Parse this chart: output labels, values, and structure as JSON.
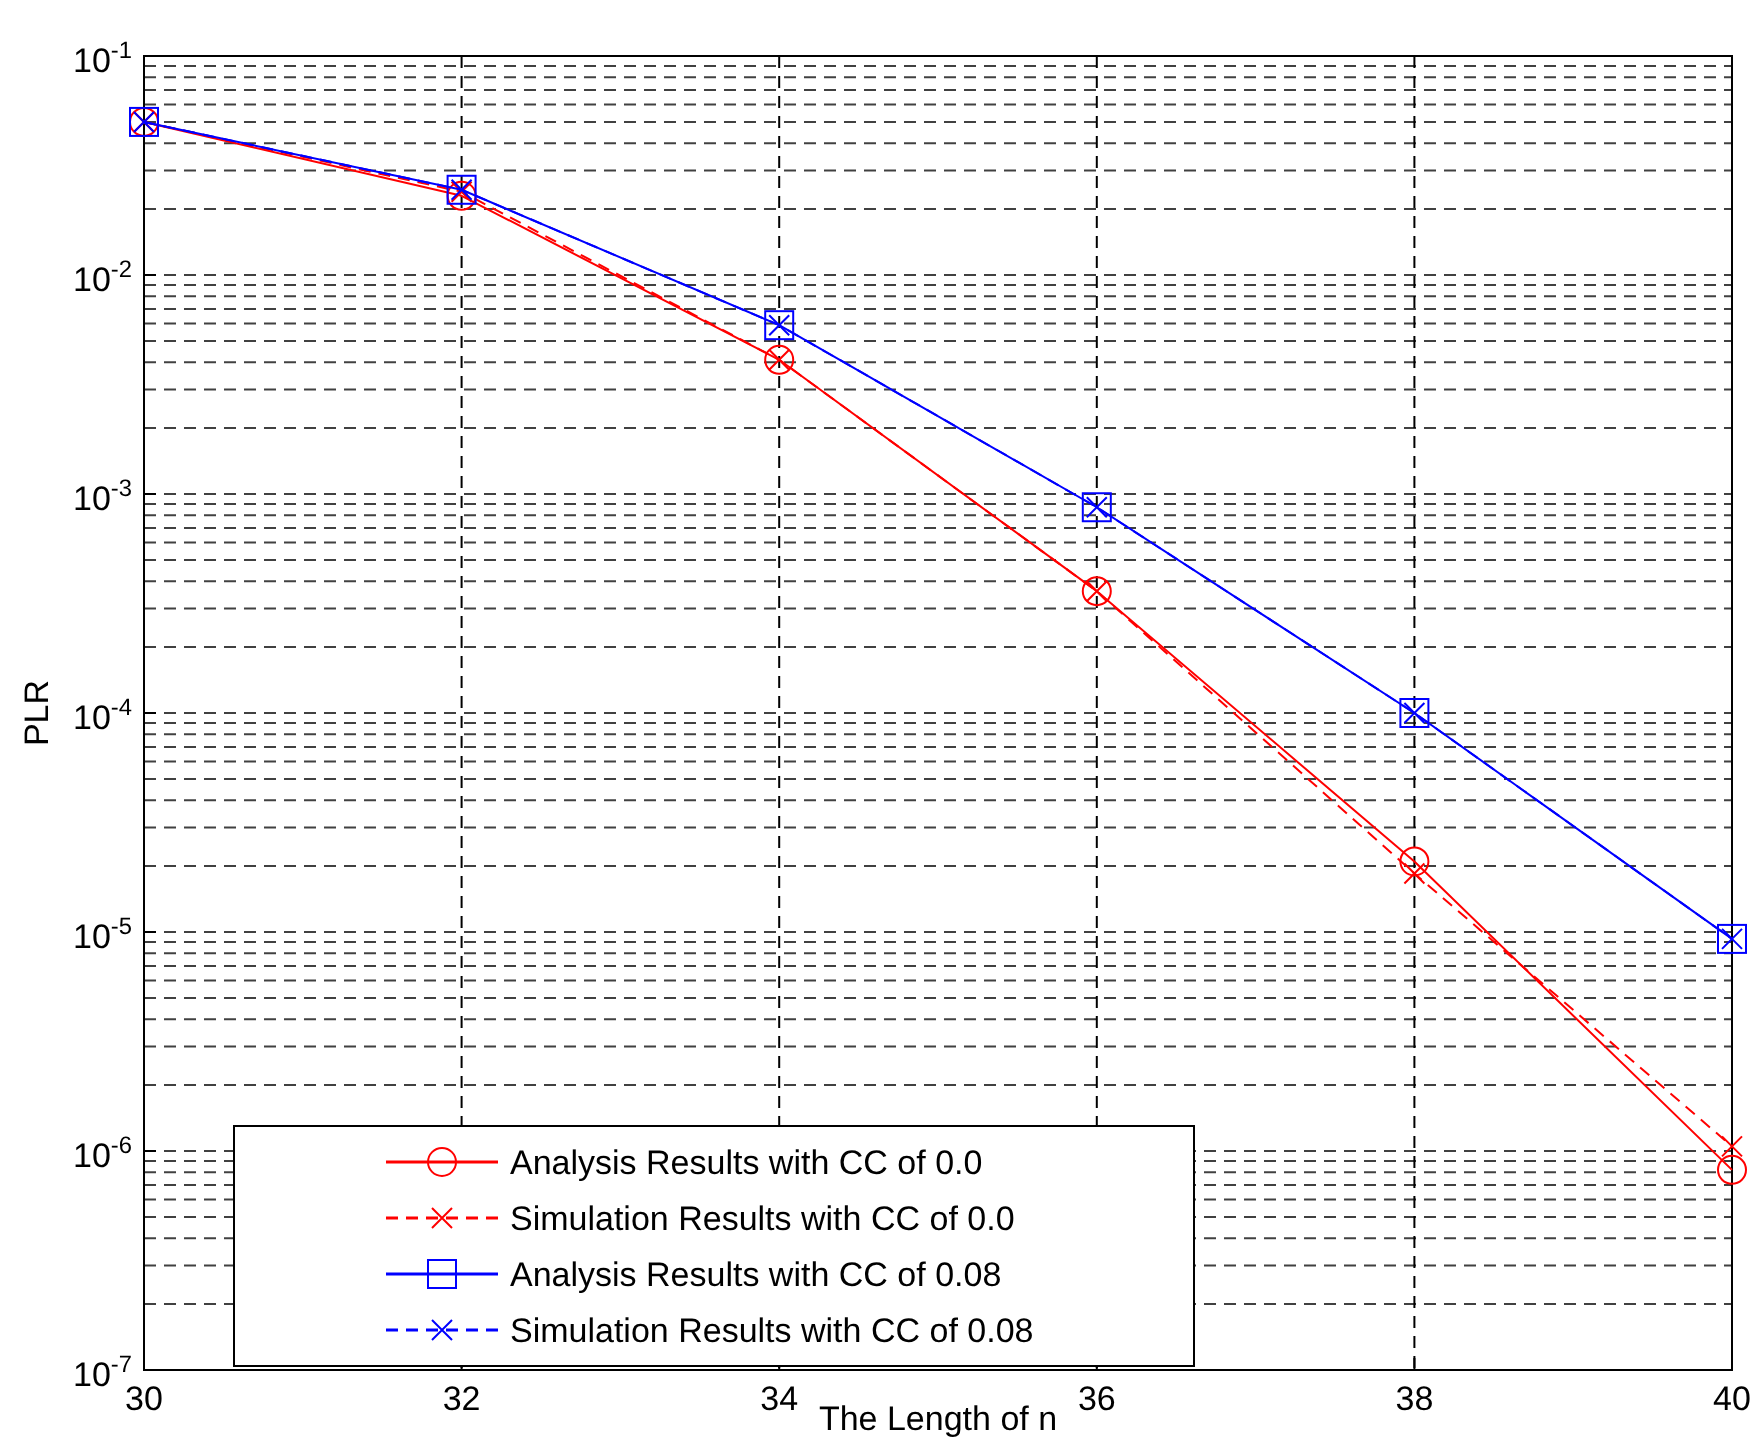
{
  "chart_data": {
    "type": "line",
    "xlabel": "The Length of n",
    "ylabel": "PLR",
    "x": [
      30,
      32,
      34,
      36,
      38,
      40
    ],
    "xlim": [
      30,
      40
    ],
    "xticks": [
      30,
      32,
      34,
      36,
      38,
      40
    ],
    "ylim": [
      1e-07,
      0.1
    ],
    "yticks": [
      {
        "value": 1e-07,
        "label": "10$^{-7}$"
      },
      {
        "value": 1e-06,
        "label": "10$^{-6}$"
      },
      {
        "value": 1e-05,
        "label": "10$^{-5}$"
      },
      {
        "value": 0.0001,
        "label": "10$^{-4}$"
      },
      {
        "value": 0.001,
        "label": "10$^{-3}$"
      },
      {
        "value": 0.01,
        "label": "10$^{-2}$"
      },
      {
        "value": 0.1,
        "label": "10$^{-1}$"
      }
    ],
    "log": "y",
    "grid": true,
    "legend": "bottom left",
    "series": [
      {
        "name": "Analysis Results with CC of 0.0",
        "color": "#ff0000",
        "marker": "circle",
        "line_style": "solid",
        "values": [
          0.05,
          0.023,
          0.0041,
          0.00036,
          2.1e-05,
          8.2e-07
        ]
      },
      {
        "name": "Simulation Results with CC of 0.0",
        "color": "#ff0000",
        "marker": "cross",
        "line_style": "dashed",
        "values": [
          0.05,
          0.024,
          0.0041,
          0.00036,
          1.85e-05,
          1.05e-06
        ]
      },
      {
        "name": "Analysis Results with CC of 0.08",
        "color": "#0000ff",
        "marker": "square",
        "line_style": "solid",
        "values": [
          0.05,
          0.0245,
          0.0059,
          0.00087,
          0.0001,
          9.3e-06
        ]
      },
      {
        "name": "Simulation Results with CC of 0.08",
        "color": "#0000ff",
        "marker": "cross",
        "line_style": "dashed",
        "values": [
          0.05,
          0.0245,
          0.0059,
          0.00087,
          0.0001,
          9.3e-06
        ]
      }
    ]
  }
}
